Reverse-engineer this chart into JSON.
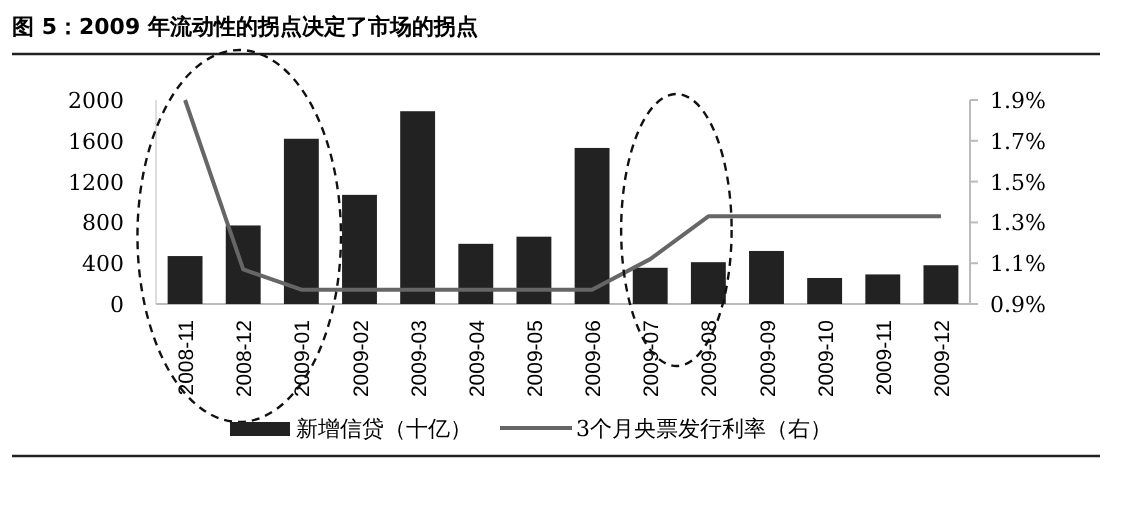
{
  "chart_data": {
    "type": "bar",
    "title": "图 5：2009 年流动性的拐点决定了市场的拐点",
    "categories": [
      "2008-11",
      "2008-12",
      "2009-01",
      "2009-02",
      "2009-03",
      "2009-04",
      "2009-05",
      "2009-06",
      "2009-07",
      "2009-08",
      "2009-09",
      "2009-10",
      "2009-11",
      "2009-12"
    ],
    "series": [
      {
        "name": "新增信贷（十亿）",
        "color": "#222222",
        "values": [
          470,
          770,
          1620,
          1070,
          1890,
          590,
          660,
          1530,
          355,
          410,
          520,
          255,
          290,
          380
        ]
      },
      {
        "name": "3个月央票发行利率（右）",
        "type": "line",
        "axis": "y2",
        "color": "#666666",
        "values": [
          1.9,
          1.07,
          0.97,
          0.97,
          0.97,
          0.97,
          0.97,
          0.97,
          1.12,
          1.33,
          1.33,
          1.33,
          1.33,
          1.33
        ]
      }
    ],
    "ylim": [
      0,
      2000
    ],
    "yticks": [
      0,
      400,
      800,
      1200,
      1600,
      2000
    ],
    "y2lim": [
      0.9,
      1.9
    ],
    "y2ticks": [
      {
        "value": 0.9,
        "label": "0.9%"
      },
      {
        "value": 1.1,
        "label": "1.1%"
      },
      {
        "value": 1.3,
        "label": "1.3%"
      },
      {
        "value": 1.5,
        "label": "1.5%"
      },
      {
        "value": 1.7,
        "label": "1.7%"
      },
      {
        "value": 1.9,
        "label": "1.9%"
      }
    ],
    "legend": "bottom",
    "grid": false
  }
}
